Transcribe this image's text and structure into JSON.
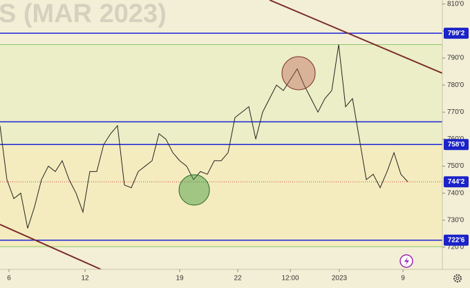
{
  "chart_data": {
    "type": "line",
    "title": "S (MAR 2023)",
    "x": [
      0,
      1,
      2,
      3,
      4,
      5,
      6,
      7,
      8,
      9,
      10,
      11,
      12,
      13,
      14,
      15,
      16,
      17,
      18,
      19,
      20,
      21,
      22,
      23,
      24,
      25,
      26,
      27,
      28,
      29,
      30,
      31,
      32,
      33,
      34,
      35,
      36,
      37,
      38,
      39,
      40,
      41,
      42,
      43,
      44,
      45,
      46,
      47,
      48,
      49,
      50,
      51,
      52,
      53,
      54,
      55,
      56,
      57,
      58,
      59
    ],
    "series": [
      {
        "color": "#222222",
        "values": [
          765,
          745,
          738,
          740,
          727,
          735,
          745,
          750,
          748,
          752,
          745,
          740,
          733,
          748,
          748,
          758,
          762,
          765,
          743,
          742,
          748,
          750,
          752,
          762,
          760,
          755,
          752,
          750,
          745,
          748,
          747,
          752,
          752,
          755,
          768,
          770,
          772,
          760,
          770,
          775,
          780,
          778,
          782,
          786,
          780,
          775,
          770,
          775,
          778,
          795,
          772,
          775,
          760,
          745,
          747,
          742,
          748,
          755,
          747,
          744.2
        ]
      }
    ],
    "xlim": [
      0,
      64
    ],
    "xticks": [
      {
        "value": 1.3,
        "label": "6"
      },
      {
        "value": 12.3,
        "label": "12"
      },
      {
        "value": 26,
        "label": "19"
      },
      {
        "value": 34.4,
        "label": "22"
      },
      {
        "value": 42,
        "label": "12:00"
      },
      {
        "value": 49.1,
        "label": "2023"
      },
      {
        "value": 58.3,
        "label": "9"
      }
    ],
    "ylim": [
      711.8,
      811.5
    ],
    "yticks": [
      {
        "value": 720,
        "label": "720'0"
      },
      {
        "value": 730,
        "label": "730'0"
      },
      {
        "value": 740,
        "label": "740'0"
      },
      {
        "value": 750,
        "label": "750'0"
      },
      {
        "value": 760,
        "label": "760'0"
      },
      {
        "value": 770,
        "label": "770'0"
      },
      {
        "value": 780,
        "label": "780'0"
      },
      {
        "value": 790,
        "label": "790'0"
      },
      {
        "value": 800,
        "label": "800'0"
      },
      {
        "value": 810,
        "label": "810'0"
      }
    ],
    "price_lines": [
      {
        "value": 799.2,
        "label": "799'2"
      },
      {
        "value": 758,
        "label": "758'0"
      },
      {
        "value": 744.2,
        "label": "744'2"
      },
      {
        "value": 722.6,
        "label": "722'6"
      }
    ],
    "levels": [
      766.4,
      795,
      720.2
    ]
  }
}
